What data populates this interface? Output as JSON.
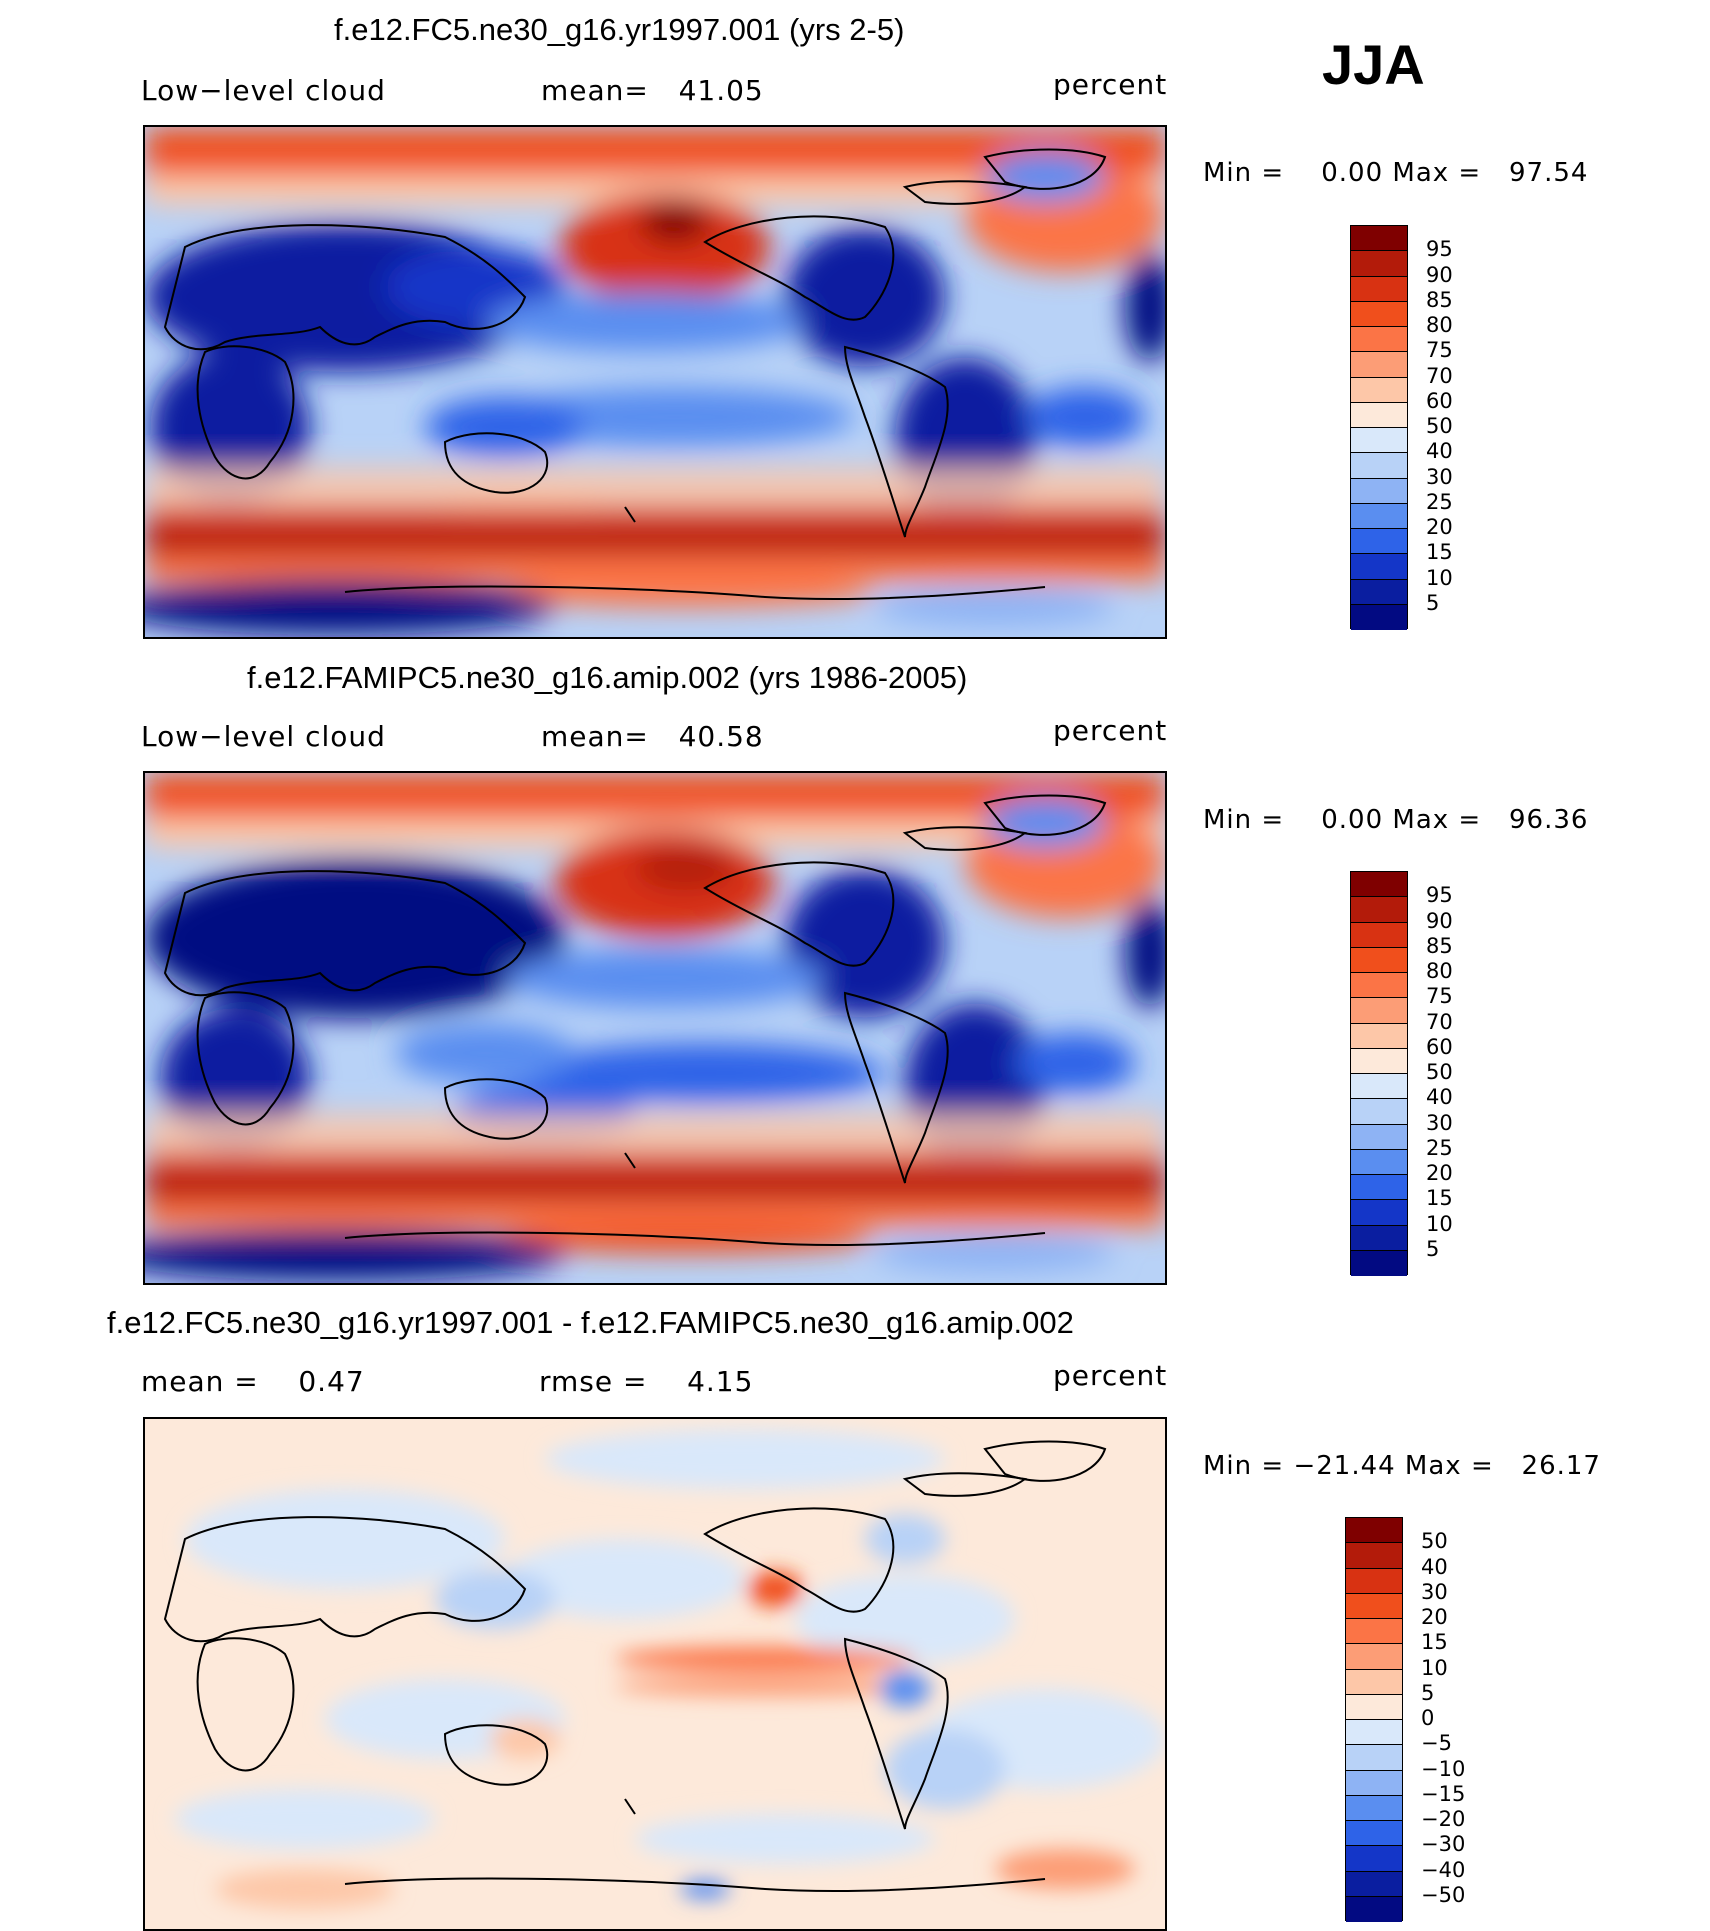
{
  "season": "JJA",
  "panels": [
    {
      "title": "f.e12.FC5.ne30_g16.yr1997.001 (yrs 2-5)",
      "left_text": "Low−level cloud",
      "mid_text": "mean=   41.05",
      "units": "percent",
      "minmax": "Min =    0.00 Max =   97.54",
      "levels": [
        "95",
        "90",
        "85",
        "80",
        "75",
        "70",
        "60",
        "50",
        "40",
        "30",
        "25",
        "20",
        "15",
        "10",
        "5"
      ],
      "colors": [
        "#7f0000",
        "#b31b0a",
        "#d83212",
        "#f04f1c",
        "#fb7446",
        "#fc9d76",
        "#fdc7a8",
        "#fde9da",
        "#d9e8fa",
        "#b8d2f7",
        "#8eb3f4",
        "#5a8ef0",
        "#2e63e8",
        "#1436c8",
        "#0a1ea0",
        "#020a82"
      ]
    },
    {
      "title": "f.e12.FAMIPC5.ne30_g16.amip.002 (yrs 1986-2005)",
      "left_text": "Low−level cloud",
      "mid_text": "mean=   40.58",
      "units": "percent",
      "minmax": "Min =    0.00 Max =   96.36",
      "levels": [
        "95",
        "90",
        "85",
        "80",
        "75",
        "70",
        "60",
        "50",
        "40",
        "30",
        "25",
        "20",
        "15",
        "10",
        "5"
      ],
      "colors": [
        "#7f0000",
        "#b31b0a",
        "#d83212",
        "#f04f1c",
        "#fb7446",
        "#fc9d76",
        "#fdc7a8",
        "#fde9da",
        "#d9e8fa",
        "#b8d2f7",
        "#8eb3f4",
        "#5a8ef0",
        "#2e63e8",
        "#1436c8",
        "#0a1ea0",
        "#020a82"
      ]
    },
    {
      "title": "f.e12.FC5.ne30_g16.yr1997.001 - f.e12.FAMIPC5.ne30_g16.amip.002",
      "left_text": "mean =    0.47",
      "mid_text": "rmse =    4.15",
      "units": "percent",
      "minmax": "Min = −21.44 Max =   26.17",
      "levels": [
        "50",
        "40",
        "30",
        "20",
        "15",
        "10",
        "5",
        "0",
        "−5",
        "−10",
        "−15",
        "−20",
        "−30",
        "−40",
        "−50"
      ],
      "colors": [
        "#7f0000",
        "#b31b0a",
        "#d83212",
        "#f04f1c",
        "#fb7446",
        "#fc9d76",
        "#fdc7a8",
        "#fde9da",
        "#d9e8fa",
        "#b8d2f7",
        "#8eb3f4",
        "#5a8ef0",
        "#2e63e8",
        "#1436c8",
        "#0a1ea0",
        "#020a82"
      ]
    }
  ]
}
